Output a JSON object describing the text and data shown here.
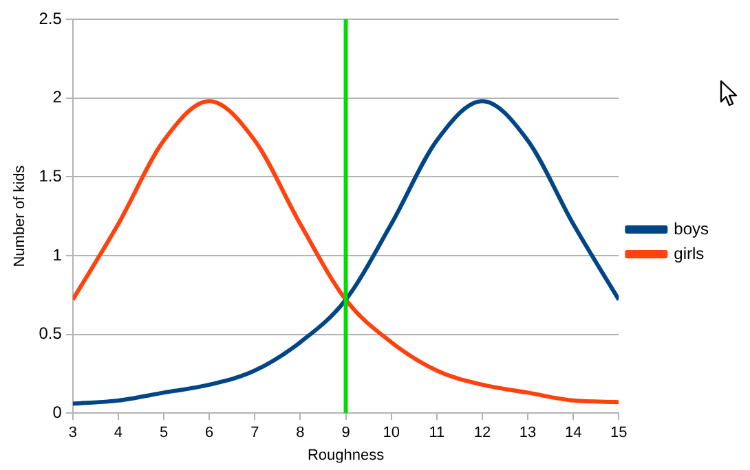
{
  "chart_data": {
    "type": "line",
    "xlabel": "Roughness",
    "ylabel": "Number of kids",
    "x": [
      3,
      4,
      5,
      6,
      7,
      8,
      9,
      10,
      11,
      12,
      13,
      14,
      15
    ],
    "series": [
      {
        "name": "boys",
        "color": "#004586",
        "values": [
          0.06,
          0.08,
          0.13,
          0.18,
          0.27,
          0.45,
          0.72,
          1.2,
          1.73,
          1.98,
          1.73,
          1.2,
          0.72
        ]
      },
      {
        "name": "girls",
        "color": "#ff420e",
        "values": [
          0.72,
          1.2,
          1.73,
          1.98,
          1.73,
          1.2,
          0.72,
          0.45,
          0.27,
          0.18,
          0.13,
          0.08,
          0.07
        ]
      }
    ],
    "xlim": [
      3,
      15
    ],
    "xticks": [
      3,
      4,
      5,
      6,
      7,
      8,
      9,
      10,
      11,
      12,
      13,
      14,
      15
    ],
    "ylim": [
      0,
      2.5
    ],
    "yticks": [
      0,
      0.5,
      1,
      1.5,
      2,
      2.5
    ],
    "ref_lines": [
      {
        "axis": "x",
        "value": 9,
        "color": "#00dd00"
      }
    ],
    "grid": "y",
    "legend": "right",
    "marker": "none",
    "line_style": "solid"
  }
}
